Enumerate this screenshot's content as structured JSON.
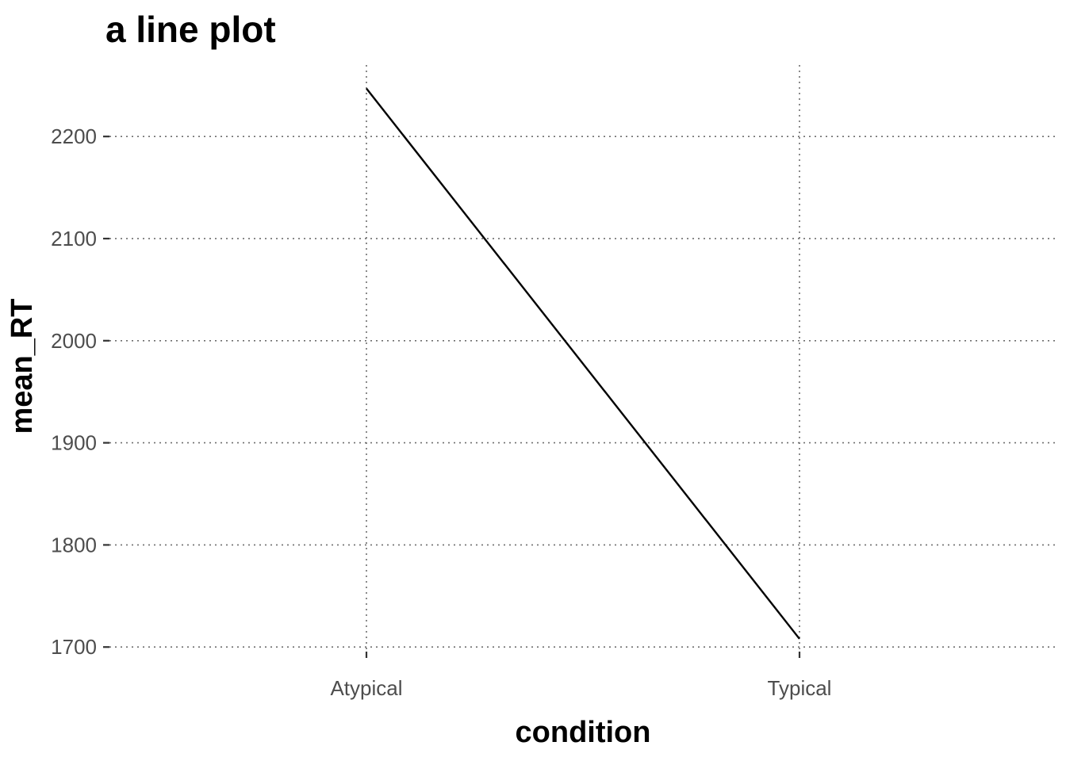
{
  "chart_data": {
    "type": "line",
    "title": "a line plot",
    "xlabel": "condition",
    "ylabel": "mean_RT",
    "categories": [
      "Atypical",
      "Typical"
    ],
    "series": [
      {
        "values": [
          2247,
          1708
        ]
      }
    ],
    "y_ticks": [
      1700,
      1800,
      1900,
      2000,
      2100,
      2200
    ],
    "y_tick_labels": [
      "1700",
      "1800",
      "1900",
      "2000",
      "2100",
      "2200"
    ],
    "ylim": [
      1680,
      2270
    ],
    "grid": true,
    "grid_style": "dotted",
    "legend": "none",
    "line_color": "#000000"
  }
}
